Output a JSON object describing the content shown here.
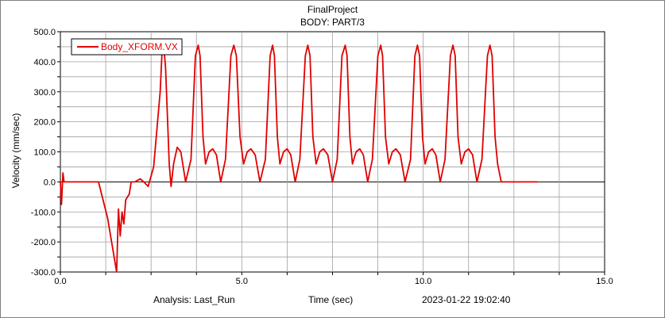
{
  "header": {
    "title": "FinalProject",
    "subtitle": "BODY: PART/3"
  },
  "footer": {
    "analysis": "Analysis:  Last_Run",
    "xlabel": "Time (sec)",
    "timestamp": "2023-01-22 19:02:40"
  },
  "chart_data": {
    "type": "line",
    "title": "FinalProject",
    "subtitle": "BODY: PART/3",
    "xlabel": "Time (sec)",
    "ylabel": "Velocity (mm/sec)",
    "xlim": [
      0,
      15
    ],
    "ylim": [
      -300,
      500
    ],
    "x_ticks": [
      "0.0",
      "5.0",
      "10.0",
      "15.0"
    ],
    "y_ticks": [
      "500.0",
      "400.0",
      "300.0",
      "200.0",
      "100.0",
      "0.0",
      "-100.0",
      "-200.0",
      "-300.0"
    ],
    "grid": true,
    "legend": "top-left",
    "series": [
      {
        "name": "Body_XFORM.VX",
        "color": "#e00000",
        "x": [
          0,
          0.03,
          0.07,
          0.1,
          0.15,
          1.05,
          1.3,
          1.55,
          1.6,
          1.65,
          1.7,
          1.75,
          1.8,
          1.9,
          1.95,
          2.05,
          2.2,
          2.3,
          2.42,
          2.57,
          2.75,
          2.8,
          2.85,
          2.9,
          3.0,
          3.05,
          3.12,
          3.22,
          3.32,
          3.45,
          3.6,
          3.72,
          3.8,
          3.85,
          3.93,
          4.0,
          4.1,
          4.2,
          4.3,
          4.42,
          4.55,
          4.7,
          4.78,
          4.85,
          4.95,
          5.05,
          5.15,
          5.25,
          5.37,
          5.5,
          5.65,
          5.78,
          5.85,
          5.9,
          5.98,
          6.05,
          6.15,
          6.25,
          6.35,
          6.47,
          6.6,
          6.75,
          6.82,
          6.88,
          6.96,
          7.05,
          7.15,
          7.25,
          7.37,
          7.5,
          7.63,
          7.76,
          7.85,
          7.9,
          7.98,
          8.05,
          8.15,
          8.25,
          8.35,
          8.47,
          8.6,
          8.75,
          8.83,
          8.88,
          8.96,
          9.05,
          9.15,
          9.25,
          9.37,
          9.5,
          9.65,
          9.77,
          9.84,
          9.9,
          9.98,
          10.05,
          10.15,
          10.25,
          10.35,
          10.47,
          10.6,
          10.75,
          10.82,
          10.88,
          10.96,
          11.05,
          11.15,
          11.25,
          11.36,
          11.48,
          11.62,
          11.77,
          11.84,
          11.9,
          11.98,
          12.05,
          12.15,
          12.2,
          13.15
        ],
        "values": [
          0,
          -75,
          30,
          0,
          0,
          0,
          -120,
          -300,
          -90,
          -180,
          -100,
          -140,
          -60,
          -40,
          0,
          0,
          10,
          0,
          -15,
          50,
          300,
          430,
          450,
          380,
          60,
          -15,
          60,
          115,
          100,
          0,
          75,
          420,
          455,
          420,
          150,
          60,
          100,
          110,
          90,
          0,
          75,
          420,
          455,
          420,
          150,
          60,
          100,
          110,
          90,
          0,
          75,
          420,
          455,
          420,
          150,
          60,
          100,
          110,
          90,
          0,
          75,
          420,
          455,
          420,
          150,
          60,
          100,
          110,
          90,
          0,
          75,
          420,
          455,
          420,
          150,
          60,
          100,
          110,
          90,
          0,
          75,
          420,
          455,
          420,
          150,
          60,
          100,
          110,
          90,
          0,
          75,
          420,
          455,
          420,
          150,
          60,
          100,
          110,
          90,
          0,
          75,
          420,
          455,
          420,
          150,
          60,
          100,
          110,
          90,
          0,
          75,
          420,
          455,
          420,
          150,
          60,
          0,
          0,
          0
        ]
      }
    ]
  }
}
